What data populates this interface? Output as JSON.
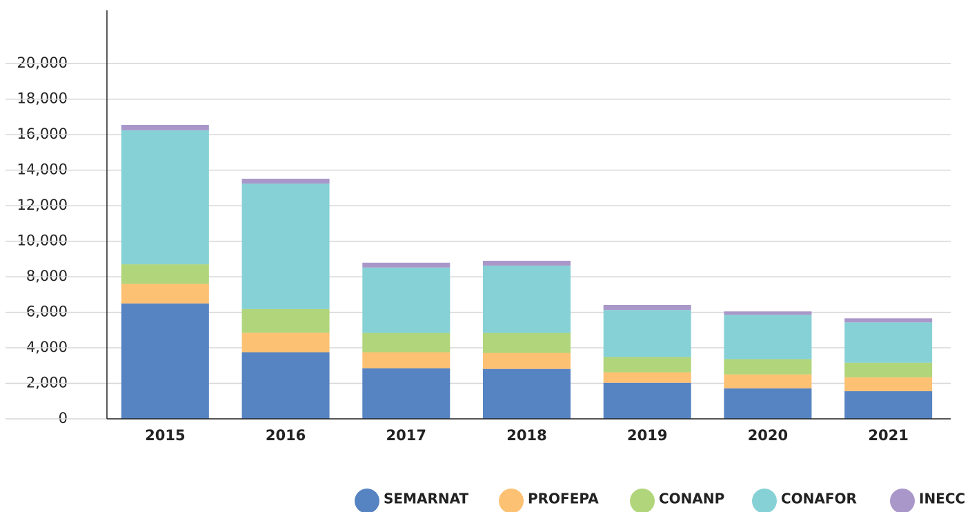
{
  "chart_data": {
    "type": "stacked_bar",
    "categories": [
      "2015",
      "2016",
      "2017",
      "2018",
      "2019",
      "2020",
      "2021"
    ],
    "series": [
      {
        "name": "SEMARNAT",
        "color": "#5683c2",
        "values": [
          6500,
          3750,
          2850,
          2810,
          2030,
          1720,
          1560
        ]
      },
      {
        "name": "PROFEPA",
        "color": "#fdc173",
        "values": [
          1100,
          1100,
          900,
          900,
          590,
          780,
          780
        ]
      },
      {
        "name": "CONANP",
        "color": "#b1d57a",
        "values": [
          1100,
          1330,
          1090,
          1130,
          860,
          860,
          820
        ]
      },
      {
        "name": "CONAFOR",
        "color": "#86d1d6",
        "values": [
          7550,
          7070,
          3680,
          3790,
          2650,
          2500,
          2270
        ]
      },
      {
        "name": "INECC",
        "color": "#a997c9",
        "values": [
          300,
          270,
          270,
          270,
          280,
          190,
          230
        ]
      }
    ],
    "ylim": [
      0,
      23000
    ],
    "yticks": [
      0,
      {
        "value": 2000,
        "label": "2,000"
      },
      {
        "value": 4000,
        "label": "4,000"
      },
      {
        "value": 6000,
        "label": "6,000"
      },
      {
        "value": 8000,
        "label": "8,000"
      },
      {
        "value": 10000,
        "label": "10,000"
      },
      {
        "value": 12000,
        "label": "12,000"
      },
      {
        "value": 14000,
        "label": "14,000"
      },
      {
        "value": 16000,
        "label": "16,000"
      },
      {
        "value": 18000,
        "label": "18,000"
      },
      {
        "value": 20000,
        "label": "20,000"
      }
    ],
    "grid": true,
    "legend": "bottom-right"
  }
}
